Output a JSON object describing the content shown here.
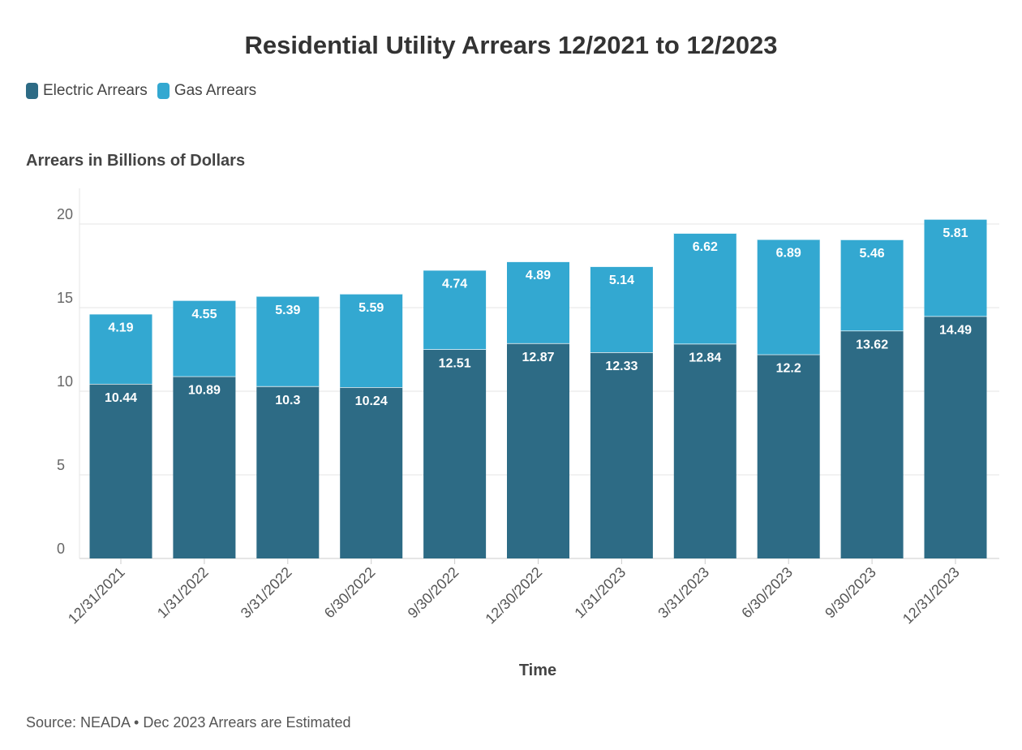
{
  "chart_data": {
    "type": "bar",
    "stacked": true,
    "title": "Residential Utility Arrears 12/2021 to 12/2023",
    "ylabel": "Arrears in Billions of Dollars",
    "xlabel": "Time",
    "ylim": [
      0,
      22
    ],
    "yticks": [
      0,
      5,
      10,
      15,
      20
    ],
    "grid": true,
    "legend_position": "top-left",
    "categories": [
      "12/31/2021",
      "1/31/2022",
      "3/31/2022",
      "6/30/2022",
      "9/30/2022",
      "12/30/2022",
      "1/31/2023",
      "3/31/2023",
      "6/30/2023",
      "9/30/2023",
      "12/31/2023"
    ],
    "series": [
      {
        "name": "Electric Arrears",
        "color": "#2d6b85",
        "values": [
          10.44,
          10.89,
          10.3,
          10.24,
          12.51,
          12.87,
          12.33,
          12.84,
          12.2,
          13.62,
          14.49
        ]
      },
      {
        "name": "Gas Arrears",
        "color": "#33a8d1",
        "values": [
          4.19,
          4.55,
          5.39,
          5.59,
          4.74,
          4.89,
          5.14,
          6.62,
          6.89,
          5.46,
          5.81
        ]
      }
    ],
    "source": "Source: NEADA • Dec 2023 Arrears are Estimated"
  }
}
